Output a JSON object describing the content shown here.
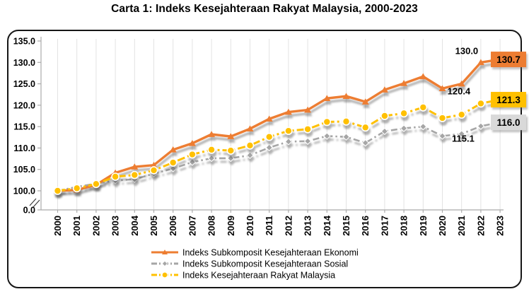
{
  "title": "Carta 1: Indeks Kesejahteraan Rakyat Malaysia, 2000-2023",
  "colors": {
    "ekonomi": "#ED7D31",
    "sosial_line": "#A6A6A6",
    "sosial_box": "#D9D9D9",
    "ikrm": "#FFC000",
    "gridline": "#E3E3E3",
    "axis": "#ABABAB",
    "text": "#000000",
    "frame_border": "#161616"
  },
  "chart_data": {
    "type": "line",
    "title": "Carta 1: Indeks Kesejahteraan Rakyat Malaysia, 2000-2023",
    "x": [
      "2000",
      "2001",
      "2002",
      "2003",
      "2004",
      "2005",
      "2006",
      "2007",
      "2008",
      "2009",
      "2010",
      "2011",
      "2012",
      "2013",
      "2014",
      "2015",
      "2016",
      "2017",
      "2018",
      "2019",
      "2020",
      "2021",
      "2022",
      "2023"
    ],
    "series": [
      {
        "name": "Indeks Subkomposit Kesejahteraan Ekonomi",
        "color": "#ED7D31",
        "marker": "triangle",
        "dash": "",
        "box_fill": "#ED7D31",
        "label_2022": "130.0",
        "label_2023": "130.7",
        "values": [
          100.0,
          100.2,
          101.4,
          104.2,
          105.6,
          106.0,
          109.6,
          111.1,
          113.2,
          112.7,
          114.5,
          116.8,
          118.4,
          118.9,
          121.6,
          122.1,
          120.8,
          123.6,
          125.1,
          126.7,
          123.9,
          125.0,
          130.0,
          130.7
        ]
      },
      {
        "name": "Indeks Subkomposit Kesejahteraan Sosial",
        "color": "#A6A6A6",
        "marker": "diamond",
        "dash": "9 4 2.5 4",
        "box_fill": "#D9D9D9",
        "label_2022": "115.1",
        "label_2023": "116.0",
        "values": [
          100.0,
          100.9,
          101.7,
          102.4,
          102.7,
          104.0,
          105.2,
          106.7,
          107.6,
          107.6,
          108.3,
          110.1,
          111.5,
          111.6,
          112.8,
          112.6,
          111.2,
          113.9,
          114.6,
          115.0,
          112.8,
          113.3,
          115.1,
          116.0
        ]
      },
      {
        "name": "Indeks Kesejahteraan Rakyat Malaysia",
        "color": "#FFC000",
        "marker": "circle",
        "dash": "11 4 3 4",
        "box_fill": "#FFC000",
        "label_2022": "120.4",
        "label_2023": "121.3",
        "values": [
          100.0,
          100.6,
          101.6,
          103.3,
          103.7,
          104.8,
          106.6,
          108.5,
          109.6,
          109.4,
          110.6,
          112.6,
          114.0,
          114.4,
          116.1,
          116.2,
          114.8,
          117.5,
          118.1,
          119.5,
          117.0,
          117.8,
          120.4,
          121.3
        ]
      }
    ],
    "yticks": [
      {
        "v": 135,
        "label": "135.0"
      },
      {
        "v": 130,
        "label": "130.0"
      },
      {
        "v": 125,
        "label": "125.0"
      },
      {
        "v": 120,
        "label": "120.0"
      },
      {
        "v": 115,
        "label": "115.0"
      },
      {
        "v": 110,
        "label": "110.0"
      },
      {
        "v": 105,
        "label": "105.0"
      },
      {
        "v": 100,
        "label": "100.0"
      },
      {
        "v": 0,
        "label": "0.0"
      }
    ],
    "ylim": [
      100,
      135
    ],
    "axis_break": true,
    "grid": "vertical",
    "legend_position": "bottom"
  }
}
